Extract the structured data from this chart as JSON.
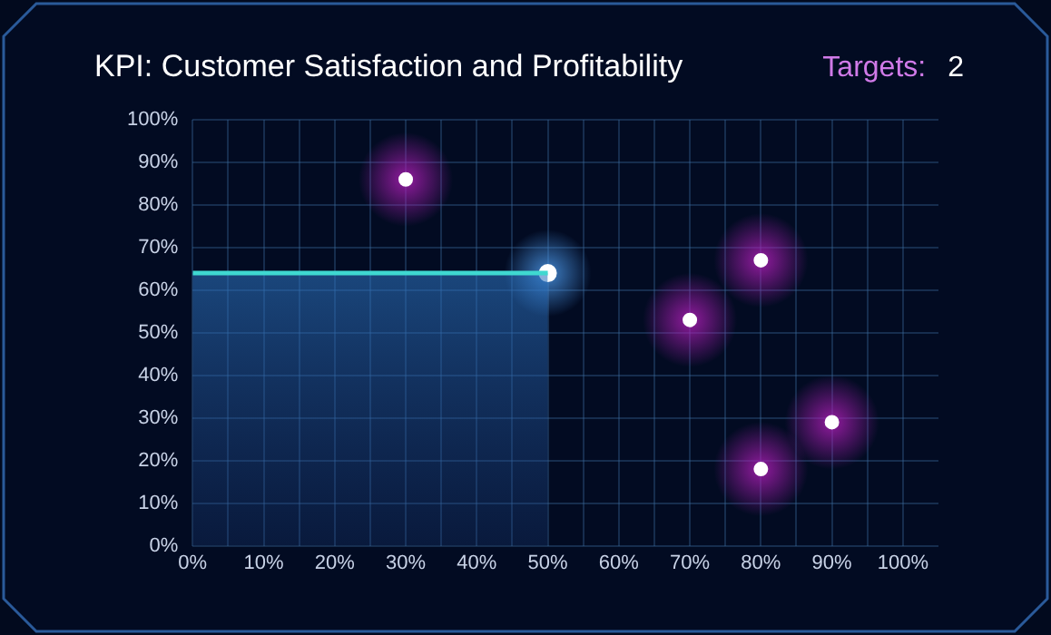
{
  "chart_data": {
    "type": "scatter",
    "title": "KPI: Customer Satisfaction and Profitability",
    "annotations": [
      "Targets:",
      "2"
    ],
    "xlim": [
      0,
      105
    ],
    "xticks": [
      {
        "value": 0,
        "label": "0%"
      },
      {
        "value": 5,
        "label": null
      },
      {
        "value": 10,
        "label": "10%"
      },
      {
        "value": 15,
        "label": null
      },
      {
        "value": 20,
        "label": "20%"
      },
      {
        "value": 25,
        "label": null
      },
      {
        "value": 30,
        "label": "30%"
      },
      {
        "value": 35,
        "label": null
      },
      {
        "value": 40,
        "label": "40%"
      },
      {
        "value": 45,
        "label": null
      },
      {
        "value": 50,
        "label": "50%"
      },
      {
        "value": 55,
        "label": null
      },
      {
        "value": 60,
        "label": "60%"
      },
      {
        "value": 65,
        "label": null
      },
      {
        "value": 70,
        "label": "70%"
      },
      {
        "value": 75,
        "label": null
      },
      {
        "value": 80,
        "label": "80%"
      },
      {
        "value": 85,
        "label": null
      },
      {
        "value": 90,
        "label": "90%"
      },
      {
        "value": 95,
        "label": null
      },
      {
        "value": 100,
        "label": "100%"
      }
    ],
    "ylim": [
      0,
      100
    ],
    "yticks": [
      {
        "value": 0,
        "label": "0%"
      },
      {
        "value": 10,
        "label": "10%"
      },
      {
        "value": 20,
        "label": "20%"
      },
      {
        "value": 30,
        "label": "30%"
      },
      {
        "value": 40,
        "label": "40%"
      },
      {
        "value": 50,
        "label": "50%"
      },
      {
        "value": 60,
        "label": "60%"
      },
      {
        "value": 70,
        "label": "70%"
      },
      {
        "value": 80,
        "label": "80%"
      },
      {
        "value": 90,
        "label": "90%"
      },
      {
        "value": 100,
        "label": "100%"
      }
    ],
    "grid": true,
    "legend": false,
    "marker": "circle",
    "series": [
      {
        "type": "area",
        "color": "#3fd8d0",
        "x": [
          0,
          50
        ],
        "values": [
          64,
          64
        ]
      },
      {
        "color": "#ffffff",
        "x": [
          50
        ],
        "values": [
          64
        ]
      },
      {
        "color": "#ffffff",
        "x": [
          30,
          70,
          80,
          80,
          90
        ],
        "values": [
          86,
          53,
          67,
          18,
          29
        ]
      }
    ]
  }
}
